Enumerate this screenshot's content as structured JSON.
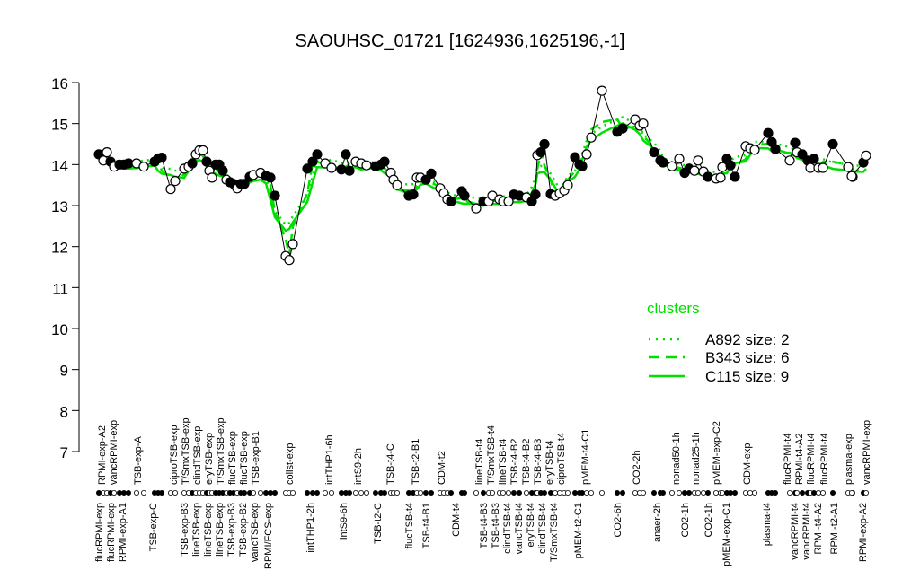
{
  "chart_data": {
    "type": "line",
    "title": "SAOUHSC_01721 [1624936,1625196,-1]",
    "xlabel": "",
    "ylabel": "",
    "ylim": [
      7,
      16
    ],
    "yticks": [
      "7",
      "8",
      "9",
      "10",
      "11",
      "12",
      "13",
      "14",
      "15",
      "16"
    ],
    "grid": false,
    "colors": {
      "cluster": "#00e000",
      "points": "#000000"
    },
    "top_labels": [
      "RPMI-exp-A2",
      "vancRPMI-exp",
      "TSB-exp-A",
      "ciproTSB-exp",
      "T/SmxTSB-exp",
      "clindTSB-exp",
      "eryTSB-exp",
      "T/SmxTSB-exp",
      "flucTSB-exp",
      "flucTSB-exp",
      "TSB-exp-B1",
      "colist-exp",
      "intTHP1-6h",
      "intS9-2h",
      "TSB-t4-C",
      "TSB-t2-B1",
      "CDM-t2",
      "lineTSB-t4",
      "T/SmxTSB-t4",
      "lineTSB-t4",
      "TSB-t4-B2",
      "TSB-t4-B2",
      "TSB-t4-B3",
      "eryTSB-t4",
      "ciproTSB-t4",
      "pMEM-t4-C1",
      "CO2-2h",
      "nonad50-1h",
      "nonad25-1h",
      "pMEM-exp-C2",
      "CDM-exp",
      "flucRPMI-t4",
      "RPMI-t4-A2",
      "flucRPMI-t4",
      "flucRPMI-t4",
      "plasma-exp",
      "vancRPMI-exp"
    ],
    "bottom_labels": [
      "flucRPMI-exp",
      "flucRPMI-exp",
      "RPMI-exp-A1",
      "TSB-exp-C",
      "TSB-exp-B3",
      "lineTSB-exp",
      "lineTSB-exp",
      "lineTSB-exp",
      "TSB-exp-B3",
      "TSB-exp-B2",
      "vancTSB-exp",
      "RPMI/FCS-exp",
      "intTHP1-2h",
      "intS9-6h",
      "TSB-t2-C",
      "flucTSB-t4",
      "TSB-t4-B1",
      "CDM-t4",
      "TSB-t4-B3",
      "TSB-t4-B3",
      "clindTSB-t4",
      "vancTSB-t4",
      "eryTSB-t4",
      "clindTSB-t4",
      "T/SmxTSB-t4",
      "pMEM-t2-C1",
      "CO2-6h",
      "anaer-2h",
      "CO2-1h",
      "CO2-1h",
      "pMEM-exp-C1",
      "plasma-t4",
      "vancRPMI-t4",
      "vancRPMI-t4",
      "RPMI-t4-A2",
      "RPMI-t2-A1",
      "RPMI-exp-A2"
    ],
    "points": [
      {
        "y": 14.25,
        "filled": true
      },
      {
        "y": 14.1,
        "filled": false
      },
      {
        "y": 14.3,
        "filled": false
      },
      {
        "y": 14.07,
        "filled": true
      },
      {
        "y": 13.95,
        "filled": false
      },
      {
        "y": 14.0,
        "filled": true
      },
      {
        "y": 14.0,
        "filled": true
      },
      {
        "y": 14.03,
        "filled": true
      },
      {
        "y": 14.03,
        "filled": false
      },
      {
        "y": 13.95,
        "filled": false
      },
      {
        "y": 14.07,
        "filled": true
      },
      {
        "y": 14.15,
        "filled": true
      },
      {
        "y": 14.17,
        "filled": true
      },
      {
        "y": 13.4,
        "filled": false
      },
      {
        "y": 13.6,
        "filled": false
      },
      {
        "y": 13.9,
        "filled": false
      },
      {
        "y": 13.95,
        "filled": false
      },
      {
        "y": 14.03,
        "filled": true
      },
      {
        "y": 14.25,
        "filled": false
      },
      {
        "y": 14.35,
        "filled": false
      },
      {
        "y": 14.35,
        "filled": false
      },
      {
        "y": 14.07,
        "filled": true
      },
      {
        "y": 13.85,
        "filled": false
      },
      {
        "y": 13.68,
        "filled": false
      },
      {
        "y": 14.0,
        "filled": true
      },
      {
        "y": 14.0,
        "filled": true
      },
      {
        "y": 13.85,
        "filled": true
      },
      {
        "y": 13.63,
        "filled": false
      },
      {
        "y": 13.57,
        "filled": true
      },
      {
        "y": 13.53,
        "filled": true
      },
      {
        "y": 13.42,
        "filled": false
      },
      {
        "y": 13.53,
        "filled": true
      },
      {
        "y": 13.53,
        "filled": true
      },
      {
        "y": 13.7,
        "filled": true
      },
      {
        "y": 13.75,
        "filled": false
      },
      {
        "y": 13.8,
        "filled": false
      },
      {
        "y": 13.72,
        "filled": true
      },
      {
        "y": 13.68,
        "filled": true
      },
      {
        "y": 13.24,
        "filled": true
      },
      {
        "y": 11.77,
        "filled": false
      },
      {
        "y": 11.67,
        "filled": false
      },
      {
        "y": 12.06,
        "filled": false
      },
      {
        "y": 13.9,
        "filled": true
      },
      {
        "y": 14.07,
        "filled": true
      },
      {
        "y": 14.25,
        "filled": true
      },
      {
        "y": 14.03,
        "filled": false
      },
      {
        "y": 13.92,
        "filled": false
      },
      {
        "y": 13.88,
        "filled": true
      },
      {
        "y": 14.25,
        "filled": true
      },
      {
        "y": 13.85,
        "filled": true
      },
      {
        "y": 14.07,
        "filled": false
      },
      {
        "y": 14.03,
        "filled": false
      },
      {
        "y": 13.98,
        "filled": false
      },
      {
        "y": 13.96,
        "filled": true
      },
      {
        "y": 14.0,
        "filled": true
      },
      {
        "y": 14.07,
        "filled": true
      },
      {
        "y": 13.8,
        "filled": false
      },
      {
        "y": 13.63,
        "filled": false
      },
      {
        "y": 13.5,
        "filled": false
      },
      {
        "y": 13.24,
        "filled": true
      },
      {
        "y": 13.27,
        "filled": true
      },
      {
        "y": 13.68,
        "filled": false
      },
      {
        "y": 13.68,
        "filled": false
      },
      {
        "y": 13.63,
        "filled": true
      },
      {
        "y": 13.78,
        "filled": true
      },
      {
        "y": 13.42,
        "filled": false
      },
      {
        "y": 13.3,
        "filled": false
      },
      {
        "y": 13.15,
        "filled": false
      },
      {
        "y": 13.1,
        "filled": true
      },
      {
        "y": 13.35,
        "filled": true
      },
      {
        "y": 13.24,
        "filled": true
      },
      {
        "y": 12.93,
        "filled": false
      },
      {
        "y": 13.1,
        "filled": true
      },
      {
        "y": 13.1,
        "filled": false
      },
      {
        "y": 13.24,
        "filled": false
      },
      {
        "y": 13.15,
        "filled": false
      },
      {
        "y": 13.1,
        "filled": false
      },
      {
        "y": 13.1,
        "filled": false
      },
      {
        "y": 13.27,
        "filled": true
      },
      {
        "y": 13.24,
        "filled": true
      },
      {
        "y": 13.2,
        "filled": false
      },
      {
        "y": 13.1,
        "filled": true
      },
      {
        "y": 13.27,
        "filled": true
      },
      {
        "y": 14.23,
        "filled": false
      },
      {
        "y": 14.3,
        "filled": true
      },
      {
        "y": 14.5,
        "filled": true
      },
      {
        "y": 13.28,
        "filled": true
      },
      {
        "y": 13.24,
        "filled": false
      },
      {
        "y": 13.3,
        "filled": false
      },
      {
        "y": 13.37,
        "filled": false
      },
      {
        "y": 13.5,
        "filled": false
      },
      {
        "y": 14.18,
        "filled": true
      },
      {
        "y": 14.0,
        "filled": true
      },
      {
        "y": 13.96,
        "filled": true
      },
      {
        "y": 14.25,
        "filled": false
      },
      {
        "y": 14.66,
        "filled": false
      },
      {
        "y": 15.8,
        "filled": false
      },
      {
        "y": 14.8,
        "filled": true
      },
      {
        "y": 14.88,
        "filled": true
      },
      {
        "y": 15.1,
        "filled": false
      },
      {
        "y": 14.95,
        "filled": false
      },
      {
        "y": 15.0,
        "filled": false
      },
      {
        "y": 14.3,
        "filled": true
      },
      {
        "y": 14.1,
        "filled": true
      },
      {
        "y": 14.05,
        "filled": true
      },
      {
        "y": 13.96,
        "filled": false
      },
      {
        "y": 14.14,
        "filled": false
      },
      {
        "y": 13.8,
        "filled": true
      },
      {
        "y": 13.9,
        "filled": true
      },
      {
        "y": 13.85,
        "filled": false
      },
      {
        "y": 14.1,
        "filled": false
      },
      {
        "y": 13.83,
        "filled": false
      },
      {
        "y": 13.7,
        "filled": true
      },
      {
        "y": 13.66,
        "filled": false
      },
      {
        "y": 13.68,
        "filled": false
      },
      {
        "y": 13.94,
        "filled": false
      },
      {
        "y": 14.14,
        "filled": true
      },
      {
        "y": 13.98,
        "filled": true
      },
      {
        "y": 13.7,
        "filled": true
      },
      {
        "y": 14.45,
        "filled": false
      },
      {
        "y": 14.4,
        "filled": false
      },
      {
        "y": 14.36,
        "filled": false
      },
      {
        "y": 14.77,
        "filled": true
      },
      {
        "y": 14.55,
        "filled": true
      },
      {
        "y": 14.38,
        "filled": true
      },
      {
        "y": 14.1,
        "filled": false
      },
      {
        "y": 14.53,
        "filled": true
      },
      {
        "y": 14.3,
        "filled": false
      },
      {
        "y": 14.25,
        "filled": true
      },
      {
        "y": 14.1,
        "filled": true
      },
      {
        "y": 13.92,
        "filled": false
      },
      {
        "y": 14.14,
        "filled": true
      },
      {
        "y": 13.92,
        "filled": false
      },
      {
        "y": 13.92,
        "filled": false
      },
      {
        "y": 14.5,
        "filled": true
      },
      {
        "y": 13.94,
        "filled": false
      },
      {
        "y": 13.7,
        "filled": false
      },
      {
        "y": 13.72,
        "filled": false
      },
      {
        "y": 14.05,
        "filled": true
      },
      {
        "y": 14.22,
        "filled": false
      }
    ],
    "legend": {
      "title": "clusters",
      "placement": "right",
      "entries": [
        {
          "label": "A892 size: 2",
          "style": "dotted"
        },
        {
          "label": "B343 size: 6",
          "style": "dashed"
        },
        {
          "label": "C115 size: 9",
          "style": "solid"
        }
      ]
    }
  }
}
